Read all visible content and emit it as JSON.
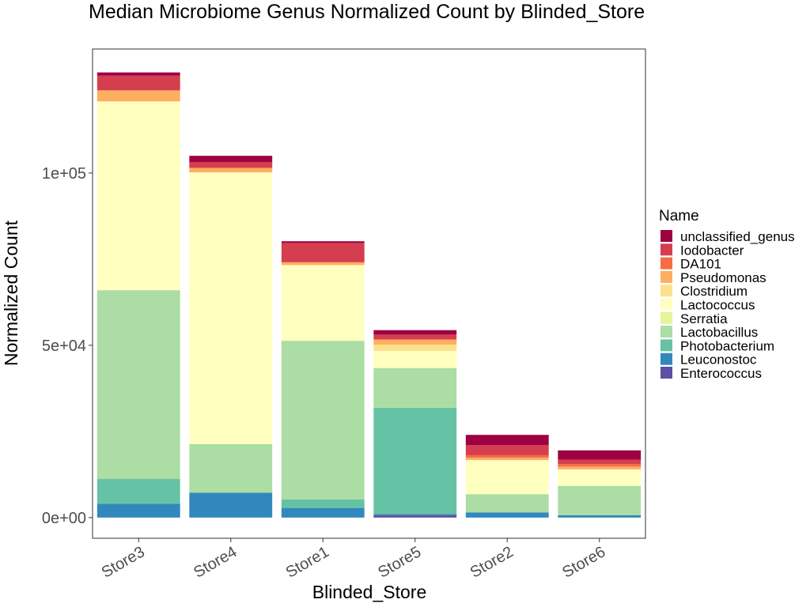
{
  "chart_data": {
    "type": "bar",
    "stacked": true,
    "title": "Median Microbiome Genus Normalized Count by Blinded_Store",
    "xlabel": "Blinded_Store",
    "ylabel": "Normalized Count",
    "ylim": [
      -6000,
      136000
    ],
    "yticks": [
      0,
      50000,
      100000
    ],
    "ytick_labels": [
      "0e+00",
      "5e+04",
      "1e+05"
    ],
    "grid": false,
    "legend_position": "right",
    "legend_title": "Name",
    "categories": [
      "Store3",
      "Store4",
      "Store1",
      "Store5",
      "Store2",
      "Store6"
    ],
    "series": [
      {
        "name": "Enterococcus",
        "color": "#5E4FA2",
        "values": [
          0,
          0,
          0,
          700,
          0,
          0
        ]
      },
      {
        "name": "Leuconostoc",
        "color": "#3288BD",
        "values": [
          4000,
          7200,
          2800,
          300,
          1500,
          700
        ]
      },
      {
        "name": "Photobacterium",
        "color": "#66C2A5",
        "values": [
          7200,
          0,
          2500,
          30900,
          0,
          0
        ]
      },
      {
        "name": "Lactobacillus",
        "color": "#ABDDA4",
        "values": [
          54800,
          14100,
          46000,
          11500,
          5300,
          8500
        ]
      },
      {
        "name": "Serratia",
        "color": "#E6F598",
        "values": [
          0,
          0,
          0,
          0,
          0,
          0
        ]
      },
      {
        "name": "Lactococcus",
        "color": "#FFFFBF",
        "values": [
          54800,
          78900,
          22000,
          5000,
          9900,
          4800
        ]
      },
      {
        "name": "Clostridium",
        "color": "#FEE08B",
        "values": [
          0,
          0,
          0,
          1800,
          0,
          0
        ]
      },
      {
        "name": "Pseudomonas",
        "color": "#FDAE61",
        "values": [
          3200,
          1300,
          800,
          1500,
          700,
          800
        ]
      },
      {
        "name": "DA101",
        "color": "#F46D43",
        "values": [
          0,
          0,
          0,
          0,
          700,
          700
        ]
      },
      {
        "name": "Iodobacter",
        "color": "#D53E4F",
        "values": [
          4300,
          1700,
          5600,
          1400,
          2900,
          1300
        ]
      },
      {
        "name": "unclassified_genus",
        "color": "#9E0142",
        "values": [
          900,
          1800,
          500,
          1300,
          3000,
          2700
        ]
      }
    ]
  }
}
